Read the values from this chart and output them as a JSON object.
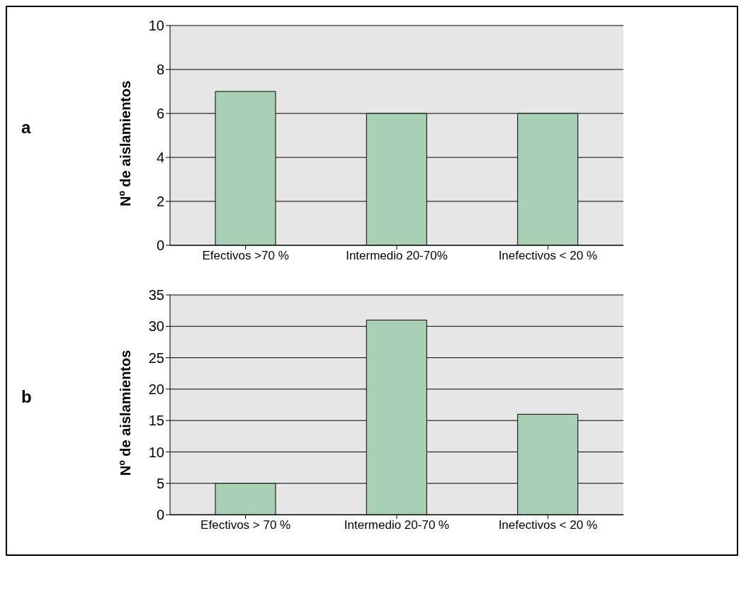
{
  "chart_data": [
    {
      "type": "bar",
      "ylabel": "Nº de aislamientos",
      "categories": [
        "Efectivos >70 %",
        "Intermedio 20-70%",
        "Inefectivos < 20 %"
      ],
      "values": [
        7,
        6,
        6
      ],
      "color": "#a8d0b4",
      "ylim": [
        0,
        10
      ],
      "yticks": [
        0,
        2,
        4,
        6,
        8,
        10
      ],
      "grid": "y",
      "annotations": [
        "a"
      ]
    },
    {
      "type": "bar",
      "ylabel": "Nº de aislamientos",
      "categories": [
        "Efectivos > 70 %",
        "Intermedio 20-70 %",
        "Inefectivos < 20 %"
      ],
      "values": [
        5,
        31,
        16
      ],
      "color": "#a8d0b4",
      "ylim": [
        0,
        35
      ],
      "yticks": [
        0,
        5,
        10,
        15,
        20,
        25,
        30,
        35
      ],
      "grid": "y",
      "annotations": [
        "b"
      ]
    }
  ]
}
